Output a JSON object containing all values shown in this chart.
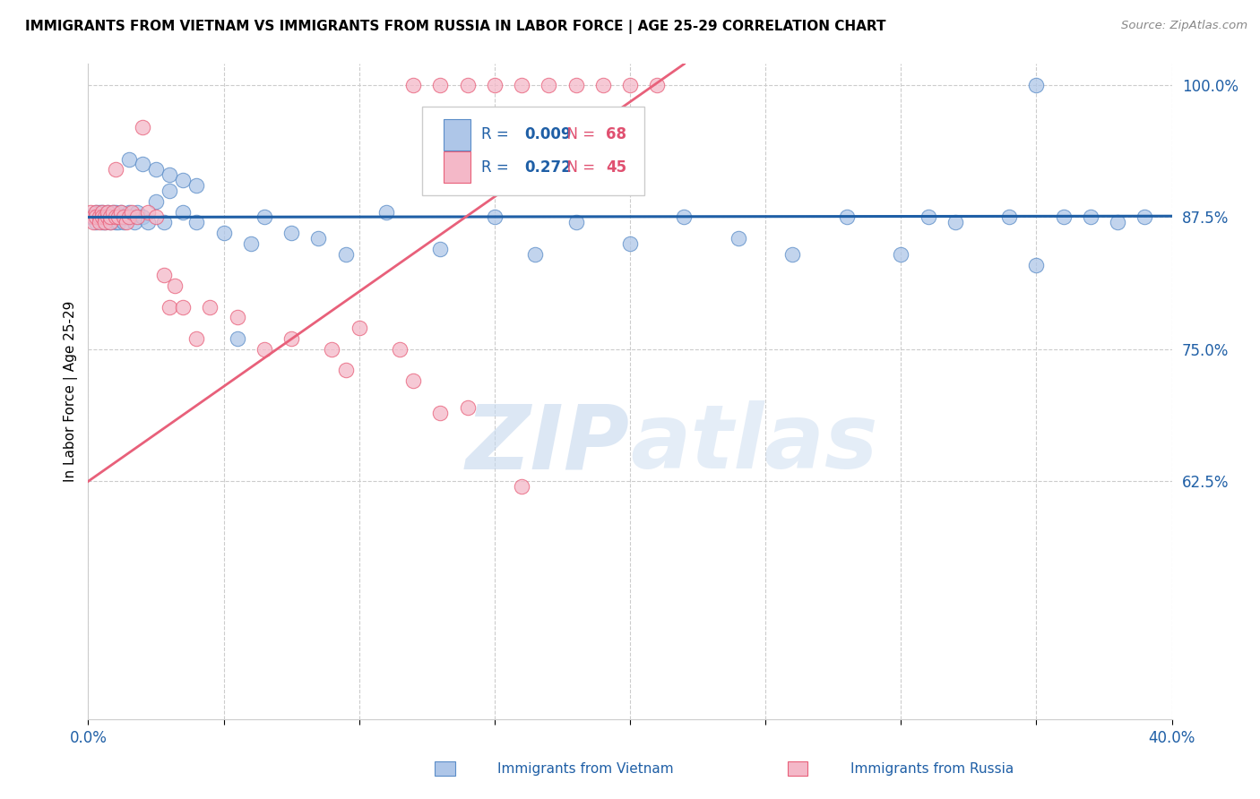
{
  "title": "IMMIGRANTS FROM VIETNAM VS IMMIGRANTS FROM RUSSIA IN LABOR FORCE | AGE 25-29 CORRELATION CHART",
  "source": "Source: ZipAtlas.com",
  "ylabel": "In Labor Force | Age 25-29",
  "xmin": 0.0,
  "xmax": 0.4,
  "ymin": 0.4,
  "ymax": 1.02,
  "yticks": [
    0.625,
    0.75,
    0.875,
    1.0
  ],
  "xticks": [
    0.0,
    0.05,
    0.1,
    0.15,
    0.2,
    0.25,
    0.3,
    0.35,
    0.4
  ],
  "blue_color": "#aec6e8",
  "blue_edge_color": "#5b8dc8",
  "blue_line_color": "#1f5fa6",
  "pink_color": "#f4b8c8",
  "pink_edge_color": "#e8607a",
  "pink_line_color": "#e8607a",
  "legend_R1": "0.009",
  "legend_N1": "68",
  "legend_R2": "0.272",
  "legend_N2": "45",
  "watermark": "ZIPatlas",
  "vietnam_x": [
    0.001,
    0.002,
    0.003,
    0.003,
    0.004,
    0.004,
    0.005,
    0.005,
    0.006,
    0.006,
    0.007,
    0.007,
    0.008,
    0.008,
    0.009,
    0.009,
    0.01,
    0.01,
    0.011,
    0.011,
    0.012,
    0.012,
    0.013,
    0.014,
    0.015,
    0.016,
    0.017,
    0.018,
    0.02,
    0.022,
    0.025,
    0.028,
    0.03,
    0.035,
    0.04,
    0.05,
    0.06,
    0.065,
    0.075,
    0.085,
    0.095,
    0.11,
    0.13,
    0.15,
    0.165,
    0.18,
    0.2,
    0.22,
    0.24,
    0.26,
    0.28,
    0.3,
    0.31,
    0.32,
    0.34,
    0.35,
    0.36,
    0.37,
    0.38,
    0.39,
    0.015,
    0.02,
    0.025,
    0.03,
    0.035,
    0.04,
    0.055,
    0.35
  ],
  "vietnam_y": [
    0.875,
    0.875,
    0.88,
    0.87,
    0.875,
    0.88,
    0.87,
    0.88,
    0.875,
    0.87,
    0.875,
    0.88,
    0.87,
    0.875,
    0.88,
    0.875,
    0.87,
    0.88,
    0.875,
    0.87,
    0.875,
    0.88,
    0.87,
    0.875,
    0.88,
    0.875,
    0.87,
    0.88,
    0.875,
    0.87,
    0.89,
    0.87,
    0.9,
    0.88,
    0.87,
    0.86,
    0.85,
    0.875,
    0.86,
    0.855,
    0.84,
    0.88,
    0.845,
    0.875,
    0.84,
    0.87,
    0.85,
    0.875,
    0.855,
    0.84,
    0.875,
    0.84,
    0.875,
    0.87,
    0.875,
    0.83,
    0.875,
    0.875,
    0.87,
    0.875,
    0.93,
    0.925,
    0.92,
    0.915,
    0.91,
    0.905,
    0.76,
    1.0
  ],
  "russia_x": [
    0.001,
    0.002,
    0.002,
    0.003,
    0.003,
    0.004,
    0.004,
    0.005,
    0.005,
    0.006,
    0.006,
    0.007,
    0.007,
    0.008,
    0.008,
    0.009,
    0.01,
    0.01,
    0.011,
    0.012,
    0.013,
    0.014,
    0.015,
    0.016,
    0.018,
    0.02,
    0.022,
    0.025,
    0.028,
    0.03,
    0.032,
    0.035,
    0.04,
    0.045,
    0.055,
    0.065,
    0.075,
    0.09,
    0.095,
    0.1,
    0.115,
    0.12,
    0.13,
    0.14,
    0.16
  ],
  "russia_y": [
    0.88,
    0.875,
    0.87,
    0.88,
    0.875,
    0.875,
    0.87,
    0.88,
    0.875,
    0.875,
    0.87,
    0.875,
    0.88,
    0.87,
    0.875,
    0.88,
    0.92,
    0.875,
    0.875,
    0.88,
    0.875,
    0.87,
    0.875,
    0.88,
    0.875,
    0.96,
    0.88,
    0.875,
    0.82,
    0.79,
    0.81,
    0.79,
    0.76,
    0.79,
    0.78,
    0.75,
    0.76,
    0.75,
    0.73,
    0.77,
    0.75,
    0.72,
    0.69,
    0.695,
    0.62
  ],
  "russia_top_x": [
    0.12,
    0.13,
    0.14,
    0.15,
    0.16,
    0.17,
    0.18,
    0.19,
    0.2,
    0.21
  ],
  "russia_top_y": [
    1.0,
    1.0,
    1.0,
    1.0,
    1.0,
    1.0,
    1.0,
    1.0,
    1.0,
    1.0
  ]
}
